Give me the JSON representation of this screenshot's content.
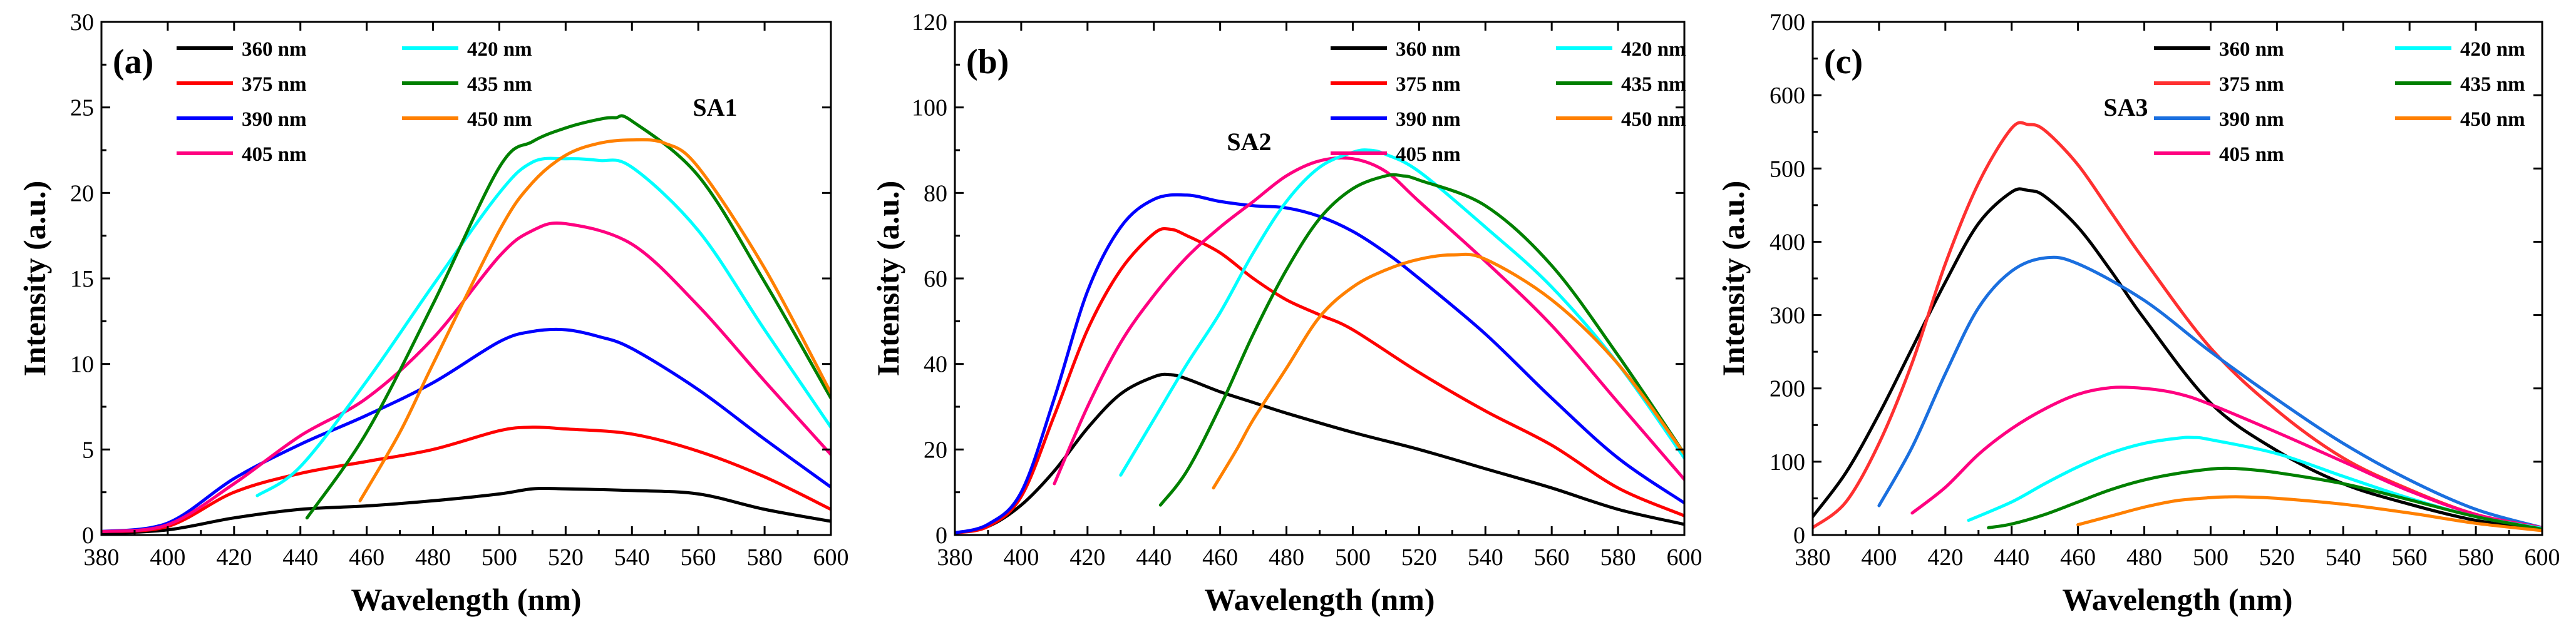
{
  "chart_data": [
    {
      "type": "line",
      "panel_label": "(a)",
      "title": "SA1",
      "xlabel": "Wavelength (nm)",
      "ylabel": "Intensity (a.u.)",
      "xlim": [
        380,
        600
      ],
      "ylim": [
        0,
        30
      ],
      "xticks": [
        380,
        400,
        420,
        440,
        460,
        480,
        500,
        520,
        540,
        560,
        580,
        600
      ],
      "yticks": [
        0,
        5,
        10,
        15,
        20,
        25,
        30
      ],
      "legend_position": "top-left",
      "series": [
        {
          "name": "360 nm",
          "color": "#000000",
          "x": [
            380,
            400,
            420,
            440,
            460,
            480,
            500,
            510,
            520,
            540,
            560,
            580,
            600
          ],
          "y": [
            0.1,
            0.3,
            1.0,
            1.5,
            1.7,
            2.0,
            2.4,
            2.7,
            2.7,
            2.6,
            2.4,
            1.5,
            0.8
          ]
        },
        {
          "name": "375 nm",
          "color": "#ff0000",
          "x": [
            380,
            400,
            420,
            440,
            460,
            480,
            500,
            510,
            520,
            540,
            560,
            580,
            600
          ],
          "y": [
            0.2,
            0.5,
            2.5,
            3.6,
            4.3,
            5.0,
            6.1,
            6.3,
            6.2,
            5.9,
            4.9,
            3.4,
            1.5
          ]
        },
        {
          "name": "390 nm",
          "color": "#0000ff",
          "x": [
            380,
            400,
            420,
            440,
            460,
            480,
            500,
            510,
            520,
            530,
            540,
            560,
            580,
            600
          ],
          "y": [
            0.2,
            0.7,
            3.3,
            5.3,
            7.0,
            8.9,
            11.3,
            11.9,
            12.0,
            11.6,
            10.9,
            8.5,
            5.6,
            2.8
          ]
        },
        {
          "name": "405 nm",
          "color": "#ff0080",
          "x": [
            380,
            400,
            420,
            440,
            460,
            480,
            500,
            510,
            520,
            540,
            560,
            580,
            600
          ],
          "y": [
            0.2,
            0.6,
            3.0,
            5.8,
            8.0,
            11.5,
            16.3,
            17.8,
            18.2,
            17.0,
            13.4,
            9.0,
            4.7
          ]
        },
        {
          "name": "420 nm",
          "color": "#00ffff",
          "x": [
            427,
            440,
            460,
            480,
            500,
            510,
            520,
            530,
            540,
            560,
            580,
            600
          ],
          "y": [
            2.3,
            4.0,
            9.0,
            14.6,
            20.0,
            21.8,
            22.0,
            21.9,
            21.5,
            17.8,
            12.0,
            6.3
          ]
        },
        {
          "name": "435 nm",
          "color": "#008000",
          "x": [
            442,
            460,
            480,
            500,
            510,
            520,
            530,
            535,
            540,
            560,
            580,
            600
          ],
          "y": [
            1.0,
            6.0,
            13.5,
            21.5,
            23.0,
            23.8,
            24.3,
            24.4,
            24.2,
            21.0,
            14.8,
            8.0
          ]
        },
        {
          "name": "450 nm",
          "color": "#ff8000",
          "x": [
            458,
            470,
            480,
            500,
            510,
            520,
            530,
            540,
            550,
            560,
            580,
            600
          ],
          "y": [
            2.0,
            6.0,
            10.0,
            17.8,
            20.6,
            22.2,
            22.9,
            23.1,
            22.9,
            21.5,
            15.6,
            8.3
          ]
        }
      ]
    },
    {
      "type": "line",
      "panel_label": "(b)",
      "title": "SA2",
      "xlabel": "Wavelength (nm)",
      "ylabel": "Intensity (a.u.)",
      "xlim": [
        380,
        600
      ],
      "ylim": [
        0,
        120
      ],
      "xticks": [
        380,
        400,
        420,
        440,
        460,
        480,
        500,
        520,
        540,
        560,
        580,
        600
      ],
      "yticks": [
        0,
        20,
        40,
        60,
        80,
        100,
        120
      ],
      "legend_position": "top-right",
      "series": [
        {
          "name": "360 nm",
          "color": "#000000",
          "x": [
            380,
            390,
            400,
            410,
            420,
            430,
            440,
            445,
            450,
            460,
            470,
            480,
            500,
            520,
            540,
            560,
            580,
            600
          ],
          "y": [
            0.5,
            2.0,
            7.0,
            15.0,
            25.0,
            33.0,
            37.0,
            37.5,
            36.5,
            33.5,
            31.0,
            28.5,
            24.0,
            20.0,
            15.5,
            11.0,
            6.0,
            2.5
          ]
        },
        {
          "name": "375 nm",
          "color": "#ff0000",
          "x": [
            380,
            390,
            400,
            410,
            420,
            430,
            440,
            445,
            450,
            460,
            470,
            480,
            490,
            500,
            520,
            540,
            560,
            580,
            600
          ],
          "y": [
            0.5,
            2.0,
            9.0,
            28.0,
            48.0,
            62.0,
            70.5,
            71.5,
            70.0,
            66.0,
            60.0,
            55.0,
            51.5,
            48.0,
            38.0,
            29.0,
            21.0,
            11.0,
            4.5
          ]
        },
        {
          "name": "390 nm",
          "color": "#0000ff",
          "x": [
            380,
            390,
            400,
            410,
            420,
            430,
            440,
            450,
            460,
            470,
            480,
            490,
            500,
            510,
            520,
            540,
            560,
            580,
            600
          ],
          "y": [
            0.5,
            2.5,
            10.0,
            32.0,
            57.0,
            72.0,
            78.5,
            79.5,
            78.0,
            77.0,
            76.5,
            74.5,
            71.0,
            66.0,
            60.0,
            47.0,
            32.0,
            18.0,
            7.5
          ]
        },
        {
          "name": "405 nm",
          "color": "#ff0080",
          "x": [
            410,
            420,
            430,
            440,
            450,
            460,
            470,
            480,
            490,
            500,
            510,
            520,
            540,
            560,
            580,
            600
          ],
          "y": [
            12.0,
            30.0,
            45.0,
            56.0,
            65.0,
            72.0,
            78.0,
            84.0,
            87.5,
            88.0,
            85.0,
            78.0,
            64.0,
            49.0,
            31.0,
            13.0
          ]
        },
        {
          "name": "420 nm",
          "color": "#00ffff",
          "x": [
            430,
            440,
            450,
            460,
            470,
            480,
            490,
            500,
            505,
            510,
            520,
            540,
            560,
            580,
            600
          ],
          "y": [
            14.0,
            27.0,
            40.0,
            52.0,
            66.0,
            78.0,
            86.0,
            89.5,
            90.0,
            89.0,
            85.0,
            72.0,
            58.0,
            40.0,
            18.0
          ]
        },
        {
          "name": "435 nm",
          "color": "#008000",
          "x": [
            442,
            450,
            460,
            470,
            480,
            490,
            500,
            510,
            515,
            520,
            540,
            560,
            580,
            600
          ],
          "y": [
            7.0,
            15.0,
            30.0,
            47.0,
            62.0,
            74.0,
            81.0,
            84.0,
            84.0,
            83.0,
            77.0,
            63.0,
            42.0,
            19.0
          ]
        },
        {
          "name": "450 nm",
          "color": "#ff8000",
          "x": [
            458,
            465,
            470,
            480,
            490,
            500,
            510,
            520,
            530,
            540,
            560,
            580,
            600
          ],
          "y": [
            11.0,
            20.0,
            27.0,
            39.0,
            51.0,
            58.0,
            62.0,
            64.5,
            65.5,
            64.5,
            55.0,
            40.0,
            19.0
          ]
        }
      ]
    },
    {
      "type": "line",
      "panel_label": "(c)",
      "title": "SA3",
      "xlabel": "Wavelength (nm)",
      "ylabel": "Intensity (a.u.)",
      "xlim": [
        380,
        600
      ],
      "ylim": [
        0,
        700
      ],
      "xticks": [
        380,
        400,
        420,
        440,
        460,
        480,
        500,
        520,
        540,
        560,
        580,
        600
      ],
      "yticks": [
        0,
        100,
        200,
        300,
        400,
        500,
        600,
        700
      ],
      "legend_position": "top-right",
      "series": [
        {
          "name": "360 nm",
          "color": "#000000",
          "x": [
            380,
            390,
            400,
            410,
            420,
            430,
            440,
            445,
            450,
            460,
            470,
            480,
            500,
            520,
            540,
            560,
            580,
            600
          ],
          "y": [
            25,
            85,
            165,
            255,
            345,
            425,
            468,
            470,
            462,
            420,
            360,
            295,
            180,
            115,
            70,
            42,
            20,
            8
          ]
        },
        {
          "name": "375 nm",
          "color": "#ff3030",
          "x": [
            380,
            390,
            400,
            410,
            420,
            430,
            440,
            445,
            450,
            460,
            470,
            480,
            500,
            520,
            540,
            560,
            580,
            600
          ],
          "y": [
            10,
            45,
            125,
            235,
            370,
            480,
            555,
            560,
            552,
            505,
            440,
            375,
            255,
            170,
            105,
            62,
            28,
            10
          ]
        },
        {
          "name": "390 nm",
          "color": "#1a6fdf",
          "x": [
            400,
            410,
            420,
            430,
            440,
            450,
            460,
            480,
            500,
            520,
            540,
            560,
            580,
            600
          ],
          "y": [
            40,
            120,
            220,
            310,
            360,
            378,
            370,
            320,
            250,
            185,
            125,
            75,
            35,
            10
          ]
        },
        {
          "name": "405 nm",
          "color": "#ff0080",
          "x": [
            410,
            420,
            430,
            440,
            450,
            460,
            470,
            480,
            490,
            500,
            520,
            540,
            560,
            580,
            600
          ],
          "y": [
            30,
            65,
            110,
            145,
            172,
            192,
            201,
            200,
            193,
            178,
            140,
            100,
            60,
            28,
            10
          ]
        },
        {
          "name": "420 nm",
          "color": "#00ffff",
          "x": [
            427,
            440,
            450,
            460,
            470,
            480,
            490,
            495,
            500,
            520,
            540,
            560,
            580,
            600
          ],
          "y": [
            20,
            45,
            70,
            93,
            112,
            125,
            132,
            133,
            130,
            111,
            80,
            50,
            25,
            9
          ]
        },
        {
          "name": "435 nm",
          "color": "#008000",
          "x": [
            433,
            440,
            450,
            460,
            470,
            480,
            490,
            500,
            505,
            510,
            520,
            540,
            560,
            580,
            600
          ],
          "y": [
            10,
            15,
            28,
            45,
            62,
            75,
            84,
            90,
            91,
            90,
            85,
            70,
            48,
            25,
            8
          ]
        },
        {
          "name": "450 nm",
          "color": "#ff8000",
          "x": [
            460,
            470,
            480,
            490,
            500,
            505,
            510,
            520,
            540,
            560,
            580,
            600
          ],
          "y": [
            14,
            26,
            38,
            47,
            51,
            52,
            52,
            50,
            42,
            30,
            16,
            6
          ]
        }
      ]
    }
  ]
}
